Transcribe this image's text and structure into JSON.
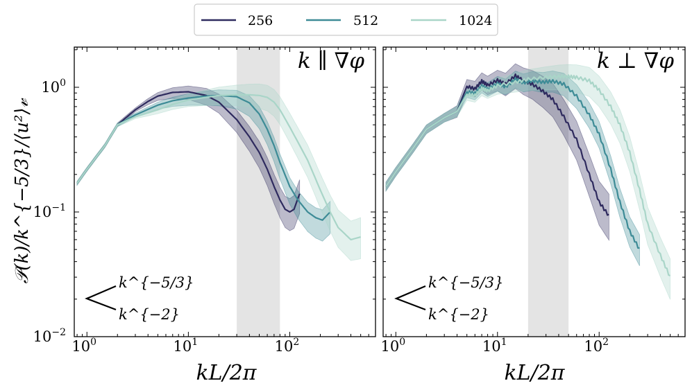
{
  "chart_data": {
    "type": "line",
    "shared_xlabel": "kL/2π",
    "shared_ylabel": "𝒫(k)/k^{−5/3}/⟨u²⟩𝓋",
    "xscale": "log",
    "yscale": "log",
    "xlim": [
      0.75,
      700
    ],
    "ylim": [
      0.01,
      2.1
    ],
    "x_ticks": [
      {
        "value": 1,
        "base": "10",
        "exp": "0"
      },
      {
        "value": 10,
        "base": "10",
        "exp": "1"
      },
      {
        "value": 100,
        "base": "10",
        "exp": "2"
      }
    ],
    "y_ticks": [
      {
        "value": 0.01,
        "base": "10",
        "exp": "−2"
      },
      {
        "value": 0.1,
        "base": "10",
        "exp": "−1"
      },
      {
        "value": 1,
        "base": "10",
        "exp": "0"
      }
    ],
    "legend": {
      "placement": "top-center",
      "entries": [
        {
          "name": "256",
          "color": "#2e2a5e"
        },
        {
          "name": "512",
          "color": "#3d8b96"
        },
        {
          "name": "1024",
          "color": "#a9d5c8"
        }
      ]
    },
    "slope_guide": {
      "upper": "k^{−5/3}",
      "lower": "k^{−2}"
    },
    "panels": [
      {
        "label": "k ∥ ∇φ",
        "shaded_band": [
          30,
          80
        ],
        "series": [
          {
            "name": "256",
            "x": [
              0.8,
              1,
              1.5,
              2,
              3,
              4,
              5,
              7,
              10,
              15,
              20,
              30,
              40,
              50,
              60,
              70,
              80,
              90,
              100,
              110,
              125
            ],
            "y": [
              0.17,
              0.22,
              0.34,
              0.5,
              0.66,
              0.77,
              0.85,
              0.91,
              0.92,
              0.86,
              0.76,
              0.55,
              0.4,
              0.3,
              0.22,
              0.16,
              0.125,
              0.105,
              0.1,
              0.105,
              0.14
            ],
            "band": [
              0.07,
              0.09
            ]
          },
          {
            "name": "512",
            "x": [
              0.8,
              1,
              1.5,
              2,
              3,
              5,
              7,
              10,
              15,
              20,
              30,
              40,
              50,
              60,
              70,
              80,
              100,
              120,
              150,
              180,
              210,
              250
            ],
            "y": [
              0.17,
              0.22,
              0.34,
              0.5,
              0.6,
              0.72,
              0.78,
              0.82,
              0.85,
              0.86,
              0.84,
              0.75,
              0.61,
              0.46,
              0.34,
              0.25,
              0.16,
              0.125,
              0.1,
              0.09,
              0.086,
              0.1
            ],
            "band": [
              0.05,
              0.1
            ]
          },
          {
            "name": "1024",
            "x": [
              0.8,
              1,
              1.5,
              2,
              3,
              5,
              7,
              10,
              15,
              20,
              30,
              40,
              50,
              60,
              70,
              80,
              100,
              150,
              200,
              250,
              300,
              400,
              500
            ],
            "y": [
              0.17,
              0.22,
              0.34,
              0.5,
              0.58,
              0.66,
              0.73,
              0.79,
              0.83,
              0.86,
              0.87,
              0.87,
              0.86,
              0.83,
              0.76,
              0.66,
              0.48,
              0.26,
              0.15,
              0.1,
              0.075,
              0.06,
              0.063
            ],
            "band": [
              0.1,
              0.1
            ]
          }
        ]
      },
      {
        "label": "k ⊥ ∇φ",
        "shaded_band": [
          20,
          50
        ],
        "series": [
          {
            "name": "256",
            "x": [
              0.8,
              1,
              1.5,
              2,
              3,
              4,
              5,
              6,
              7,
              8,
              10,
              12,
              15,
              18,
              22,
              28,
              35,
              45,
              60,
              80,
              100,
              125
            ],
            "y": [
              0.16,
              0.21,
              0.33,
              0.46,
              0.57,
              0.64,
              1.02,
              0.97,
              1.12,
              1.04,
              1.14,
              1.06,
              1.24,
              1.13,
              1.06,
              0.93,
              0.8,
              0.58,
              0.38,
              0.2,
              0.12,
              0.093
            ],
            "band": [
              0.1,
              0.1
            ]
          },
          {
            "name": "512",
            "x": [
              0.8,
              1,
              1.5,
              2,
              3,
              4,
              5,
              6,
              7,
              8,
              10,
              12,
              15,
              18,
              22,
              28,
              35,
              45,
              60,
              80,
              100,
              130,
              160,
              200,
              250
            ],
            "y": [
              0.16,
              0.21,
              0.33,
              0.46,
              0.57,
              0.64,
              0.92,
              0.89,
              1.02,
              0.96,
              1.07,
              1.01,
              1.16,
              1.09,
              1.13,
              1.1,
              1.12,
              1.06,
              0.85,
              0.6,
              0.42,
              0.22,
              0.12,
              0.07,
              0.05
            ],
            "band": [
              0.06,
              0.06
            ]
          },
          {
            "name": "1024",
            "x": [
              0.8,
              1,
              1.5,
              2,
              3,
              4,
              5,
              6,
              7,
              8,
              10,
              15,
              20,
              30,
              40,
              50,
              60,
              80,
              100,
              130,
              160,
              200,
              250,
              300,
              400,
              500
            ],
            "y": [
              0.16,
              0.21,
              0.33,
              0.46,
              0.57,
              0.64,
              0.88,
              0.86,
              0.98,
              0.94,
              1.03,
              1.1,
              1.16,
              1.2,
              1.22,
              1.22,
              1.2,
              1.13,
              0.95,
              0.7,
              0.5,
              0.3,
              0.15,
              0.08,
              0.045,
              0.03
            ],
            "band": [
              0.08,
              0.09
            ]
          }
        ]
      }
    ]
  }
}
